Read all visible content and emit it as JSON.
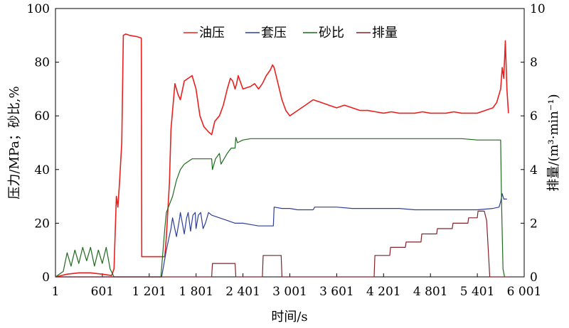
{
  "chart_data": {
    "type": "line",
    "xlabel": "时间/s",
    "ylabel_left": "压力/MPa；砂比,%",
    "ylabel_right": "排量/(m³·min⁻¹)",
    "xlim": [
      1,
      6001
    ],
    "ylim_left": [
      0,
      100
    ],
    "ylim_right": [
      0,
      10
    ],
    "grid": false,
    "legend_position": "top-center",
    "x_ticks": [
      1,
      601,
      1201,
      1801,
      2401,
      3001,
      3601,
      4201,
      4801,
      5401,
      6001
    ],
    "x_tick_labels": [
      "1",
      "601",
      "1 201",
      "1 801",
      "2 401",
      "3 001",
      "3 601",
      "4 201",
      "4 801",
      "5 401",
      "6 001"
    ],
    "y_left_ticks": [
      0,
      20,
      40,
      60,
      80,
      100
    ],
    "y_left_tick_labels": [
      "0",
      "20",
      "40",
      "60",
      "80",
      "100"
    ],
    "y_right_ticks": [
      0,
      2,
      4,
      6,
      8,
      10
    ],
    "y_right_tick_labels": [
      "0",
      "2",
      "4",
      "6",
      "8",
      "10"
    ],
    "series": [
      {
        "name": "油压",
        "axis": "left",
        "color": "#e8211f",
        "x": [
          1,
          150,
          300,
          450,
          600,
          720,
          750,
          780,
          800,
          820,
          850,
          870,
          900,
          950,
          1050,
          1100,
          1105,
          1300,
          1400,
          1420,
          1460,
          1480,
          1530,
          1570,
          1600,
          1650,
          1700,
          1750,
          1800,
          1850,
          1900,
          1960,
          2000,
          2040,
          2100,
          2150,
          2200,
          2240,
          2270,
          2300,
          2320,
          2340,
          2400,
          2500,
          2550,
          2600,
          2650,
          2700,
          2750,
          2780,
          2800,
          2850,
          2900,
          2950,
          3001,
          3100,
          3200,
          3300,
          3400,
          3500,
          3600,
          3700,
          3800,
          3900,
          4000,
          4100,
          4200,
          4300,
          4400,
          4500,
          4600,
          4700,
          4800,
          4900,
          5000,
          5100,
          5200,
          5300,
          5400,
          5500,
          5600,
          5650,
          5700,
          5720,
          5740,
          5760,
          5780,
          5800
        ],
        "values": [
          0,
          1,
          1.5,
          1.5,
          1,
          0.5,
          3,
          30,
          26,
          35,
          50,
          90,
          90.5,
          90,
          89.5,
          89,
          7.5,
          7.5,
          7.5,
          15,
          35,
          55,
          72,
          68,
          66,
          73,
          74,
          75,
          70,
          60,
          56,
          54,
          53,
          58,
          60,
          64,
          70,
          74,
          73,
          70,
          72,
          75,
          70,
          71,
          72,
          70,
          72,
          75,
          77,
          79,
          78,
          72,
          66,
          62,
          60,
          62,
          64,
          66,
          65,
          64,
          63,
          64,
          63,
          62,
          62,
          61.5,
          61,
          61.5,
          61,
          61,
          61,
          61.5,
          61,
          61,
          61,
          61.5,
          61,
          61,
          61,
          62,
          63,
          65,
          70,
          78,
          74,
          88,
          70,
          61
        ]
      },
      {
        "name": "套压",
        "axis": "left",
        "color": "#2e3f99",
        "x": [
          1,
          1340,
          1360,
          1420,
          1450,
          1480,
          1500,
          1550,
          1580,
          1600,
          1650,
          1680,
          1700,
          1730,
          1760,
          1790,
          1800,
          1830,
          1860,
          1890,
          1920,
          1960,
          2000,
          2100,
          2200,
          2300,
          2400,
          2500,
          2600,
          2700,
          2750,
          2790,
          2800,
          2900,
          3001,
          3100,
          3200,
          3300,
          3320,
          3400,
          3600,
          3800,
          4000,
          4200,
          4400,
          4600,
          4800,
          5000,
          5200,
          5400,
          5600,
          5680,
          5700,
          5720,
          5740,
          5760,
          5780
        ],
        "values": [
          0,
          0,
          0,
          10,
          14,
          18,
          22,
          15,
          20,
          24,
          16,
          22,
          24,
          17,
          23,
          24,
          18,
          23,
          24,
          18,
          20,
          24,
          23,
          22,
          21,
          20,
          20,
          19.5,
          19,
          19,
          19,
          19,
          26,
          25.5,
          25.5,
          25,
          25,
          25,
          26,
          26,
          26,
          25.5,
          25.5,
          25.5,
          25.5,
          25,
          25,
          25,
          25,
          25,
          25.5,
          26,
          28,
          31,
          29,
          29,
          29
        ]
      },
      {
        "name": "砂比",
        "axis": "left",
        "color": "#1e6a1e",
        "x": [
          1,
          100,
          150,
          200,
          250,
          300,
          350,
          400,
          450,
          500,
          550,
          600,
          650,
          700,
          750,
          800,
          850,
          1350,
          1400,
          1420,
          1500,
          1550,
          1600,
          1650,
          1700,
          1750,
          1800,
          1850,
          2000,
          2010,
          2050,
          2100,
          2120,
          2200,
          2250,
          2300,
          2310,
          2330,
          2400,
          2500,
          2600,
          2700,
          2800,
          3001,
          3200,
          3400,
          3600,
          3800,
          4000,
          4200,
          4400,
          4600,
          4800,
          5000,
          5200,
          5400,
          5600,
          5700,
          5710,
          5730,
          5750
        ],
        "values": [
          0,
          2,
          9,
          4,
          10,
          5,
          11,
          6,
          11,
          4,
          10,
          5,
          11,
          3,
          0,
          0,
          0,
          0,
          18,
          24,
          30,
          36,
          40,
          42,
          43,
          44,
          44,
          44,
          44,
          40,
          44,
          46,
          42,
          46,
          48,
          48,
          52,
          50,
          51,
          51.5,
          51.5,
          51.5,
          51.5,
          51.5,
          51.5,
          51.5,
          51.5,
          51.5,
          51.5,
          51.5,
          51.5,
          51.5,
          51.5,
          51.5,
          51.5,
          51,
          51,
          51,
          30,
          3,
          0
        ]
      },
      {
        "name": "排量",
        "axis": "right",
        "color": "#80232a",
        "x": [
          1,
          2000,
          2010,
          2300,
          2310,
          2650,
          2660,
          2890,
          2900,
          4080,
          4090,
          4280,
          4290,
          4480,
          4490,
          4680,
          4690,
          4880,
          4890,
          5080,
          5090,
          5280,
          5290,
          5400,
          5410,
          5490,
          5520,
          5560,
          5800
        ],
        "values": [
          0,
          0,
          0.5,
          0.5,
          0,
          0,
          0.8,
          0.8,
          0,
          0,
          0.8,
          0.8,
          1.1,
          1.1,
          1.3,
          1.3,
          1.6,
          1.6,
          1.8,
          1.8,
          2.0,
          2.0,
          2.2,
          2.2,
          2.45,
          2.45,
          2.1,
          0,
          0
        ]
      }
    ]
  }
}
